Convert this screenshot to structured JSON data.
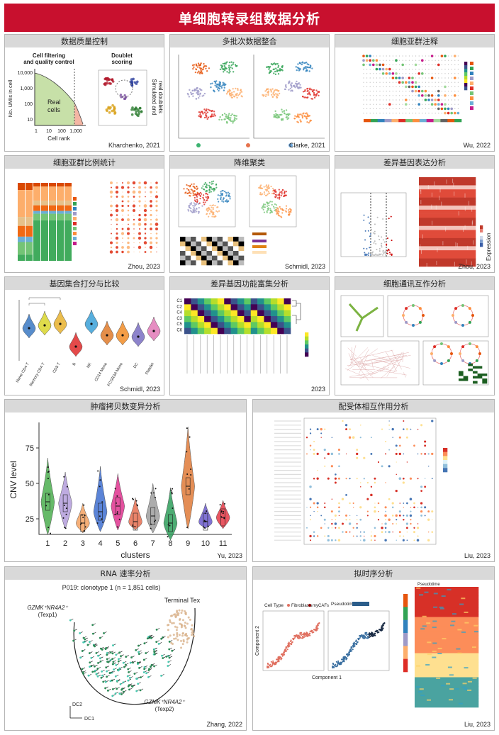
{
  "header": {
    "title": "单细胞转录组数据分析"
  },
  "panels": [
    {
      "title": "数据质量控制",
      "credit": "Kharchenko, 2021",
      "figure": {
        "left_title": [
          "Cell filtering",
          "and quality control"
        ],
        "right_title": [
          "Doublet",
          "scoring"
        ],
        "area_label": [
          "Real",
          "cells"
        ],
        "y_label": "No. UMIs in cell",
        "x_label": "Cell rank",
        "yticks": [
          "10",
          "100",
          "1,000",
          "10,000"
        ],
        "xticks": [
          "1",
          "10",
          "100",
          "1,000"
        ],
        "side_label": [
          "Simulated and",
          "real doublets"
        ]
      }
    },
    {
      "title": "多批次数据整合",
      "credit": "Clarke, 2021"
    },
    {
      "title": "细胞亚群注释",
      "credit": "Wu, 2022"
    },
    {
      "title": "细胞亚群比例统计",
      "credit": "Zhou, 2023"
    },
    {
      "title": "降维聚类",
      "credit": "Schmidl, 2023"
    },
    {
      "title": "差异基因表达分析",
      "credit": "Zhou, 2023",
      "figure": {
        "heat_label": "Expression"
      }
    },
    {
      "title": "基因集合打分与比较",
      "credit": "Schmidl, 2023",
      "figure": {
        "categories": [
          "Naive CD4 T",
          "Memory CD4 T",
          "CD8 T",
          "B",
          "NK",
          "CD14 Mono",
          "FCGR3A Mono",
          "DC",
          "Platelet"
        ]
      }
    },
    {
      "title": "差异基因功能富集分析",
      "credit": "2023",
      "figure": {
        "rows": [
          "C1",
          "C2",
          "C4",
          "C3",
          "C5",
          "C6"
        ]
      }
    },
    {
      "title": "细胞通讯互作分析"
    },
    {
      "title": "肿瘤拷贝数变异分析",
      "credit": "Yu, 2023",
      "figure": {
        "y_label": "CNV level",
        "x_label": "clusters",
        "yticks": [
          25,
          50,
          75
        ],
        "categories": [
          "1",
          "2",
          "3",
          "4",
          "5",
          "6",
          "7",
          "8",
          "9",
          "10",
          "11"
        ]
      }
    },
    {
      "title": "配受体相互作用分析",
      "credit": "Liu, 2023"
    },
    {
      "title": "RNA 速率分析",
      "credit": "Zhang, 2022",
      "figure": {
        "subtitle": "P019: clonotype 1 (n = 1,851 cells)",
        "end_label": "Terminal Tex",
        "start_label": [
          "GZMK⁺NR4A2⁺",
          "(Texp1)"
        ],
        "mid_label": [
          "GZMK⁺NR4A2⁺",
          "(Texp2)"
        ],
        "x_label": "DC1",
        "y_label": "DC2"
      }
    },
    {
      "title": "拟时序分析",
      "credit": "Liu, 2023",
      "figure": {
        "legend_title": "Cell Type",
        "legend_items": [
          "Fibroblasts",
          "myCAFs"
        ],
        "pseudo_title": "Pseudotime",
        "x_label": "Component 1",
        "y_label": "Component 2",
        "heat_title": "Pseudotime"
      }
    }
  ]
}
